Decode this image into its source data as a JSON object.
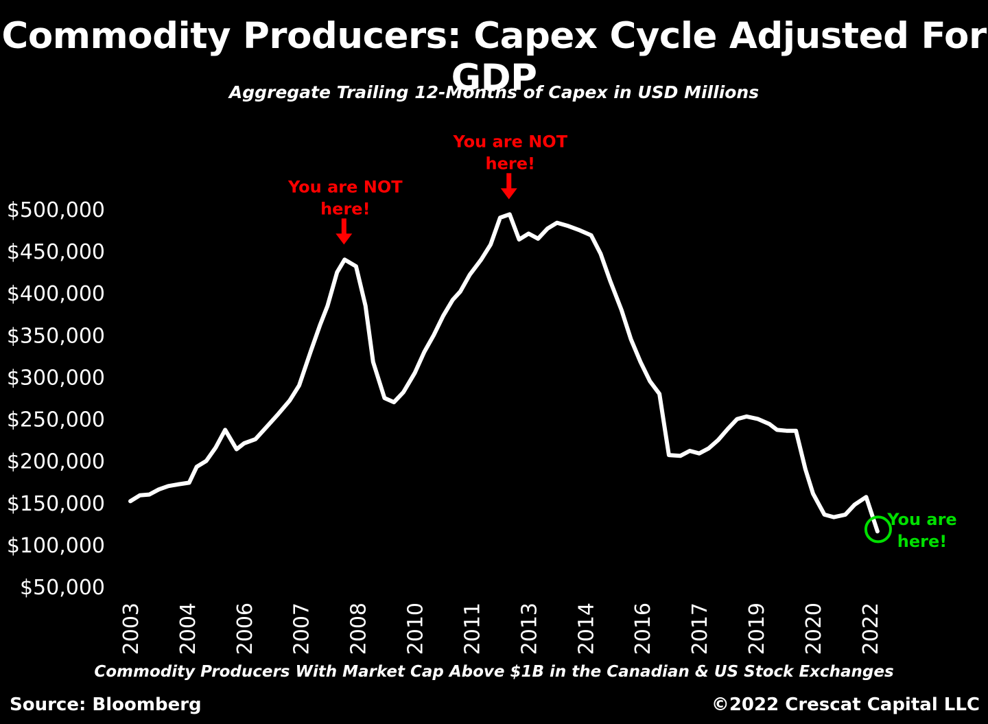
{
  "chart_data": {
    "type": "line",
    "title": "Commodity Producers: Capex Cycle Adjusted For GDP",
    "subtitle": "Aggregate Trailing 12-Months of Capex in USD Millions",
    "xlabel": "Commodity Producers With Market Cap Above $1B in the Canadian & US Stock Exchanges",
    "ylabel": "",
    "ylim": [
      50000,
      500000
    ],
    "y_ticks": [
      50000,
      100000,
      150000,
      200000,
      250000,
      300000,
      350000,
      400000,
      450000,
      500000
    ],
    "y_tick_labels": [
      "$50,000",
      "$100,000",
      "$150,000",
      "$200,000",
      "$250,000",
      "$300,000",
      "$350,000",
      "$400,000",
      "$450,000",
      "$500,000"
    ],
    "x_tick_labels": [
      "2003",
      "2004",
      "2006",
      "2007",
      "2008",
      "2010",
      "2011",
      "2013",
      "2014",
      "2016",
      "2017",
      "2019",
      "2020",
      "2022"
    ],
    "x_tick_values": [
      2003.0,
      2004.5,
      2006.0,
      2007.5,
      2009.0,
      2010.5,
      2012.0,
      2013.5,
      2015.0,
      2016.5,
      2018.0,
      2019.5,
      2021.0,
      2022.5
    ],
    "xlim": [
      2003.0,
      2022.9
    ],
    "grid": false,
    "line_color": "#ffffff",
    "series": [
      {
        "values": [
          [
            2003.0,
            152000
          ],
          [
            2003.25,
            159000
          ],
          [
            2003.5,
            160000
          ],
          [
            2003.75,
            166000
          ],
          [
            2004.0,
            170000
          ],
          [
            2004.25,
            172000
          ],
          [
            2004.55,
            174000
          ],
          [
            2004.75,
            193000
          ],
          [
            2005.0,
            200000
          ],
          [
            2005.25,
            216000
          ],
          [
            2005.5,
            237000
          ],
          [
            2005.8,
            214000
          ],
          [
            2006.0,
            221000
          ],
          [
            2006.3,
            226000
          ],
          [
            2006.6,
            241000
          ],
          [
            2006.9,
            256000
          ],
          [
            2007.2,
            272000
          ],
          [
            2007.45,
            290000
          ],
          [
            2007.75,
            330000
          ],
          [
            2008.0,
            362000
          ],
          [
            2008.2,
            385000
          ],
          [
            2008.45,
            425000
          ],
          [
            2008.65,
            440000
          ],
          [
            2008.95,
            432000
          ],
          [
            2009.2,
            385000
          ],
          [
            2009.4,
            318000
          ],
          [
            2009.7,
            275000
          ],
          [
            2009.95,
            270000
          ],
          [
            2010.2,
            282000
          ],
          [
            2010.5,
            305000
          ],
          [
            2010.75,
            330000
          ],
          [
            2011.0,
            350000
          ],
          [
            2011.25,
            373000
          ],
          [
            2011.5,
            392000
          ],
          [
            2011.7,
            402000
          ],
          [
            2011.95,
            422000
          ],
          [
            2012.25,
            440000
          ],
          [
            2012.5,
            458000
          ],
          [
            2012.75,
            490000
          ],
          [
            2013.0,
            494000
          ],
          [
            2013.25,
            464000
          ],
          [
            2013.5,
            471000
          ],
          [
            2013.75,
            465000
          ],
          [
            2014.0,
            477000
          ],
          [
            2014.25,
            484000
          ],
          [
            2014.55,
            480000
          ],
          [
            2014.85,
            475000
          ],
          [
            2015.15,
            469000
          ],
          [
            2015.4,
            447000
          ],
          [
            2015.65,
            415000
          ],
          [
            2015.95,
            380000
          ],
          [
            2016.2,
            345000
          ],
          [
            2016.45,
            318000
          ],
          [
            2016.7,
            295000
          ],
          [
            2016.95,
            280000
          ],
          [
            2017.2,
            207000
          ],
          [
            2017.5,
            206000
          ],
          [
            2017.75,
            212000
          ],
          [
            2018.0,
            209000
          ],
          [
            2018.25,
            215000
          ],
          [
            2018.5,
            225000
          ],
          [
            2018.75,
            238000
          ],
          [
            2019.0,
            250000
          ],
          [
            2019.25,
            253000
          ],
          [
            2019.55,
            250000
          ],
          [
            2019.85,
            244000
          ],
          [
            2020.05,
            237000
          ],
          [
            2020.3,
            236000
          ],
          [
            2020.55,
            236000
          ],
          [
            2020.8,
            190000
          ],
          [
            2021.0,
            161000
          ],
          [
            2021.3,
            136000
          ],
          [
            2021.55,
            133000
          ],
          [
            2021.85,
            136000
          ],
          [
            2022.1,
            148000
          ],
          [
            2022.4,
            157000
          ],
          [
            2022.7,
            116000
          ]
        ]
      }
    ],
    "annotations": [
      {
        "text_line1": "You are NOT",
        "text_line2": "here!",
        "x": 2008.65,
        "y": 440000,
        "color": "#ff0000",
        "marker": "arrow-down"
      },
      {
        "text_line1": "You are NOT",
        "text_line2": "here!",
        "x": 2013.0,
        "y": 494000,
        "color": "#ff0000",
        "marker": "arrow-down"
      },
      {
        "text_line1": "You are",
        "text_line2": "here!",
        "x": 2022.7,
        "y": 116000,
        "color": "#00e000",
        "marker": "circle"
      }
    ]
  },
  "footer": {
    "source": "Source: Bloomberg",
    "copyright": "©2022 Crescat Capital LLC"
  }
}
